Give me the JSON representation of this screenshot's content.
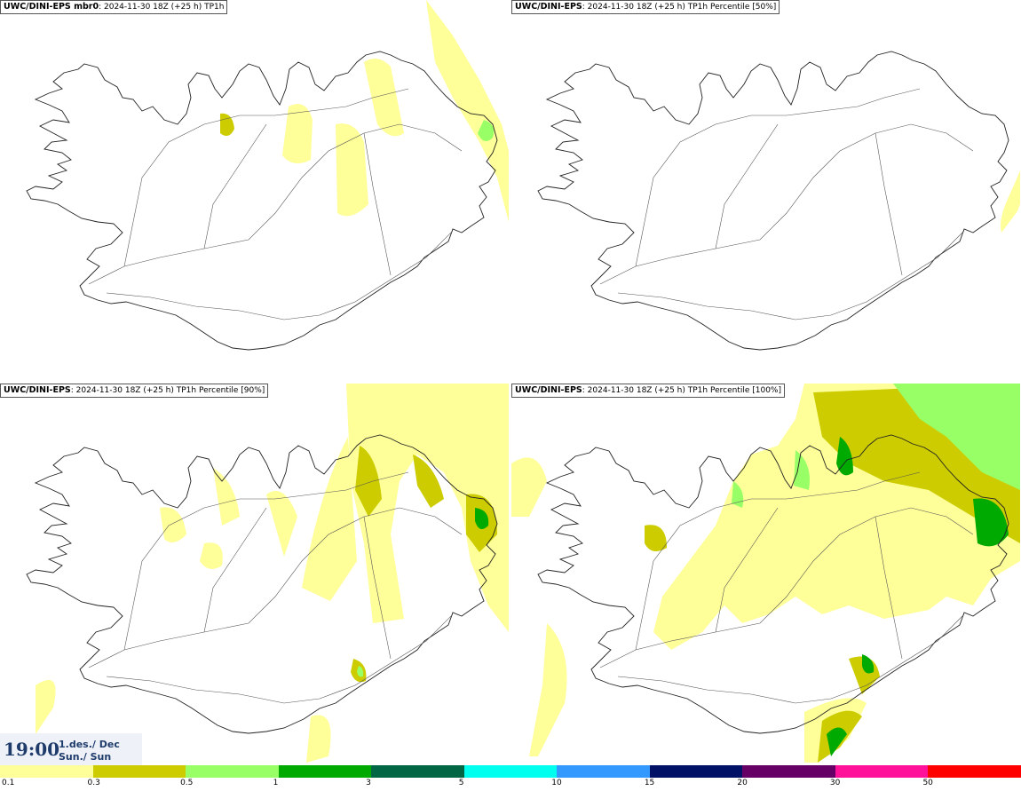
{
  "panels": [
    {
      "title_bold": "UWC/DINI-EPS mbr0",
      "title_rest": ": 2024-11-30 18Z (+25 h) TP1h",
      "level": 1
    },
    {
      "title_bold": "UWC/DINI-EPS",
      "title_rest": ": 2024-11-30 18Z (+25 h) TP1h Percentile [50%]",
      "level": 0
    },
    {
      "title_bold": "UWC/DINI-EPS",
      "title_rest": ": 2024-11-30 18Z (+25 h) TP1h Percentile [90%]",
      "level": 2
    },
    {
      "title_bold": "UWC/DINI-EPS",
      "title_rest": ": 2024-11-30 18Z (+25 h) TP1h Percentile [100%]",
      "level": 3
    }
  ],
  "time": {
    "clock": "19:00",
    "date_line1": "1.des./ Dec",
    "date_line2": "Sun./ Sun"
  },
  "legend": {
    "colors": [
      "#ffff99",
      "#cccc00",
      "#99ff66",
      "#00aa00",
      "#006644",
      "#00ffee",
      "#3399ff",
      "#001166",
      "#660066",
      "#ff1199",
      "#ff0000"
    ],
    "labels": [
      "0.1",
      "0.3",
      "0.5",
      "1",
      "3",
      "5",
      "10",
      "15",
      "20",
      "30",
      "50"
    ]
  }
}
